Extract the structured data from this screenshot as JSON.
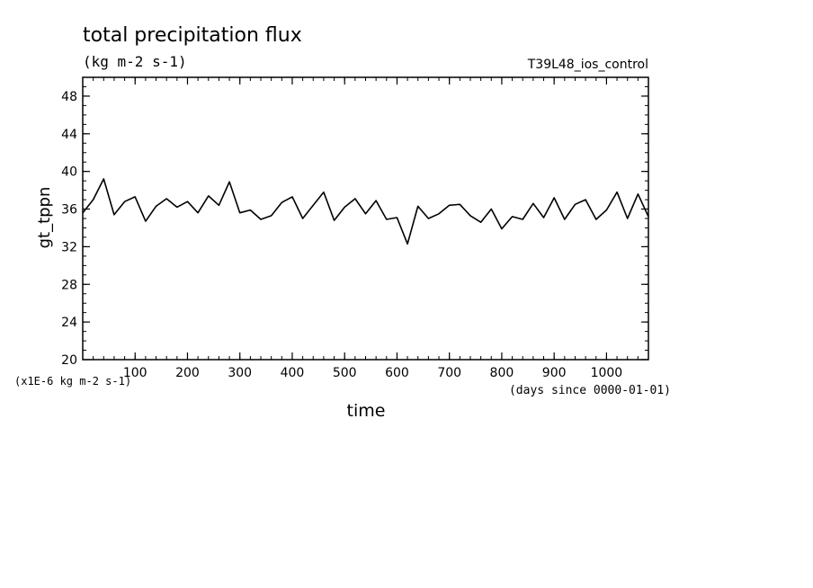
{
  "chart_data": {
    "type": "line",
    "title": "total precipitation flux",
    "subtitle": "(kg m-2 s-1)",
    "experiment": "T39L48_ios_control",
    "xlabel": "time",
    "x_unit_label": "(days since 0000-01-01)",
    "ylabel": "gt_tppn",
    "y_unit_label": "(x1E-6 kg m-2 s-1)",
    "xlim": [
      0,
      1080
    ],
    "ylim": [
      20,
      50
    ],
    "x_ticks": [
      100,
      200,
      300,
      400,
      500,
      600,
      700,
      800,
      900,
      1000
    ],
    "y_ticks": [
      20,
      24,
      28,
      32,
      36,
      40,
      44,
      48
    ],
    "x_minor_step": 20,
    "y_minor_step": 1,
    "series": [
      {
        "color": "#000000",
        "x": [
          0,
          20,
          40,
          60,
          80,
          100,
          120,
          140,
          160,
          180,
          200,
          220,
          240,
          260,
          280,
          300,
          320,
          340,
          360,
          380,
          400,
          420,
          440,
          460,
          480,
          500,
          520,
          540,
          560,
          580,
          600,
          620,
          640,
          660,
          680,
          700,
          720,
          740,
          760,
          780,
          800,
          820,
          840,
          860,
          880,
          900,
          920,
          940,
          960,
          980,
          1000,
          1020,
          1040,
          1060,
          1080
        ],
        "values": [
          35.6,
          37.0,
          39.2,
          35.4,
          36.8,
          37.3,
          34.7,
          36.3,
          37.1,
          36.2,
          36.8,
          35.6,
          37.4,
          36.4,
          38.9,
          35.6,
          35.9,
          34.9,
          35.3,
          36.7,
          37.3,
          35.0,
          36.4,
          37.8,
          34.8,
          36.2,
          37.1,
          35.5,
          36.9,
          34.9,
          35.1,
          32.3,
          36.3,
          35.0,
          35.5,
          36.4,
          36.5,
          35.3,
          34.6,
          36.0,
          33.9,
          35.2,
          34.9,
          36.6,
          35.1,
          37.2,
          34.9,
          36.5,
          37.0,
          34.9,
          35.9,
          37.8,
          35.0,
          37.6,
          35.2
        ]
      }
    ]
  }
}
